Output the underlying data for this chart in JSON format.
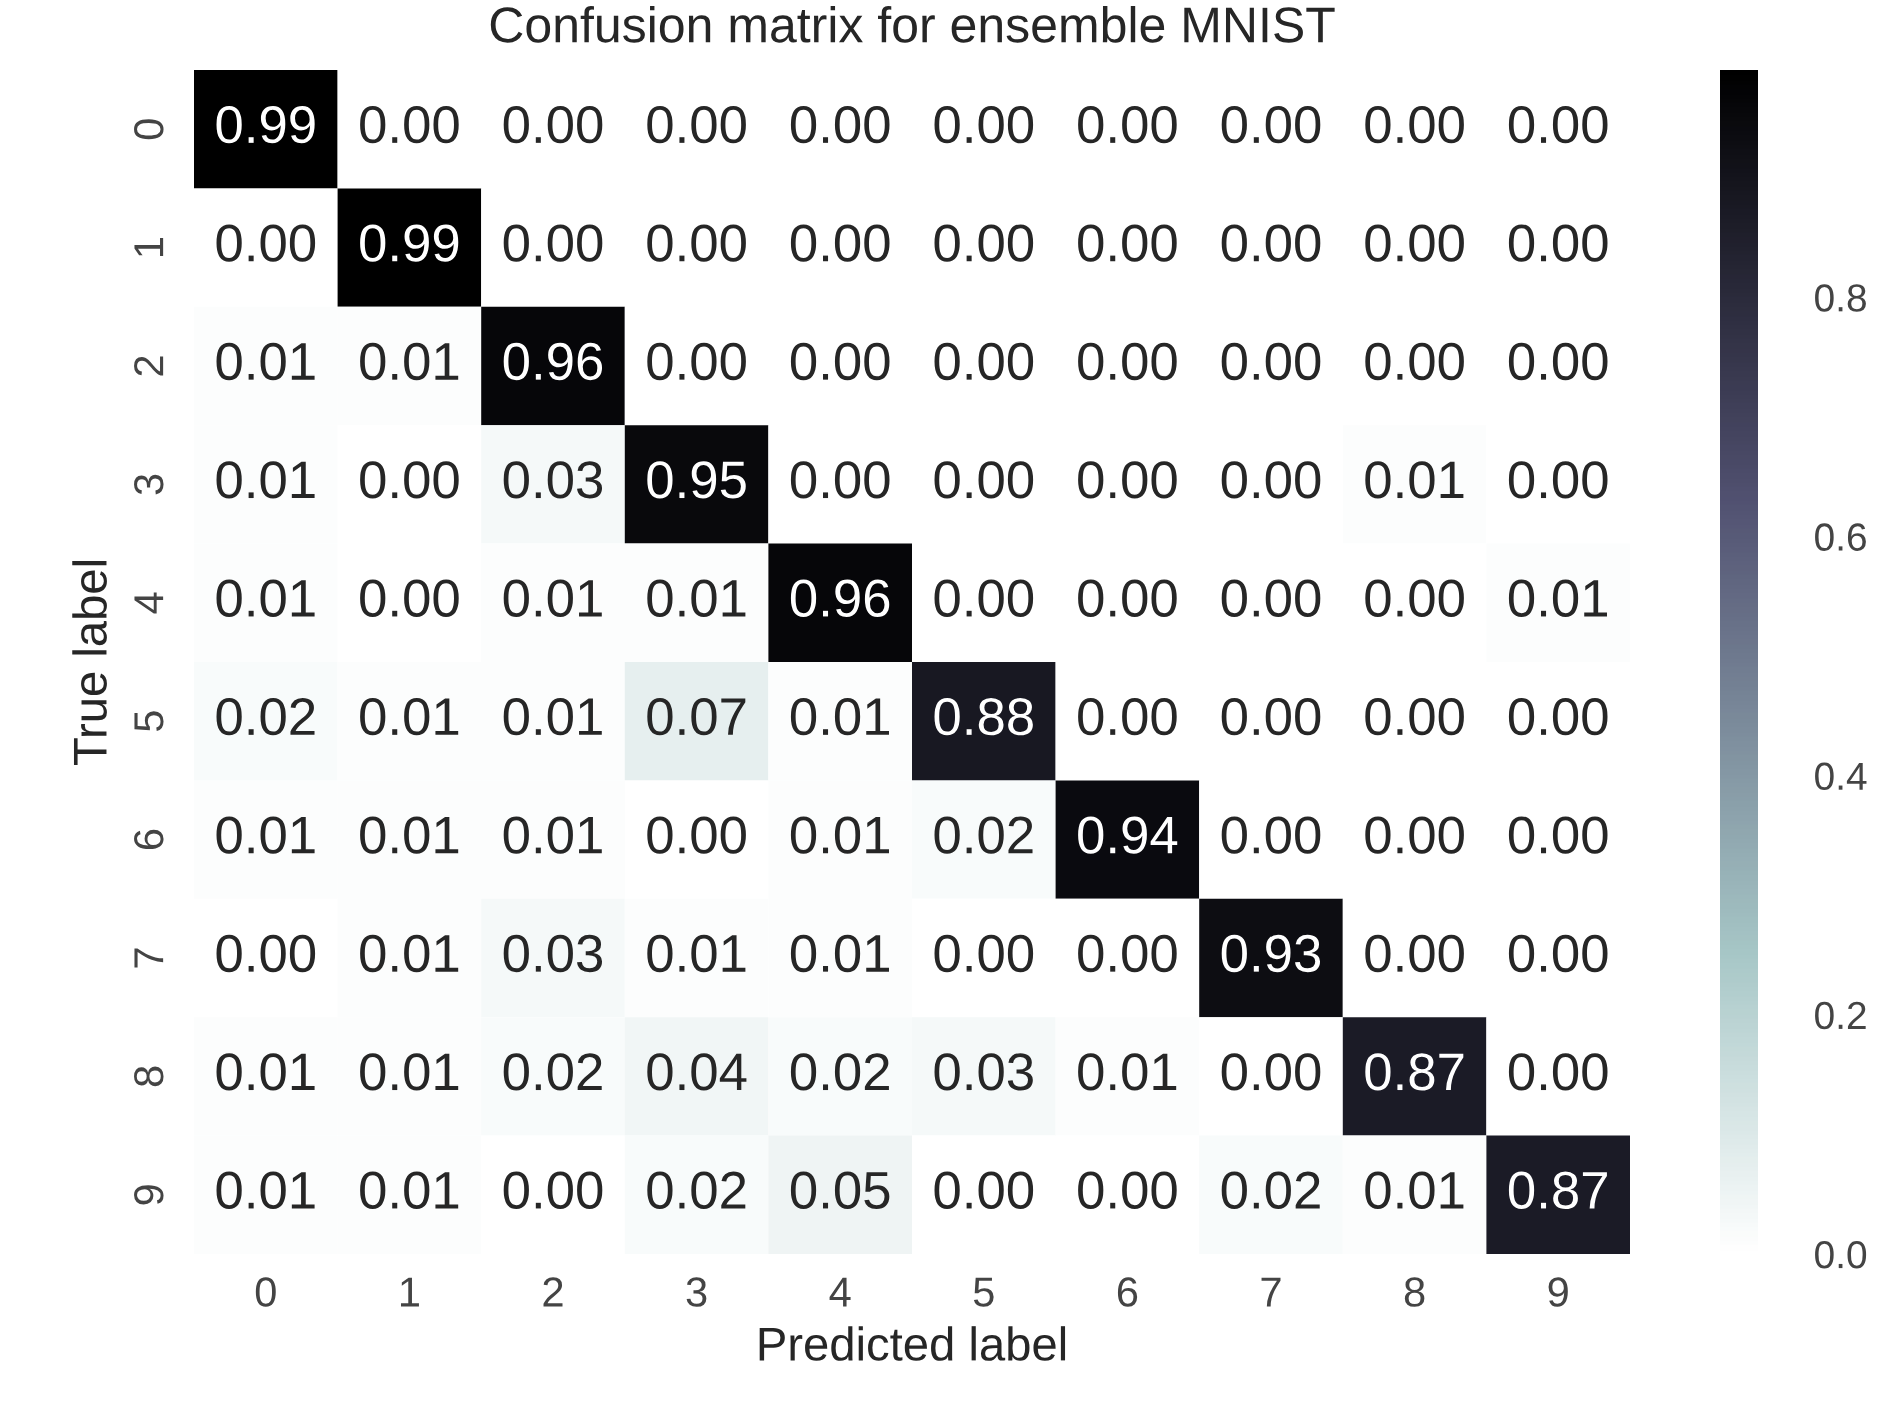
{
  "chart_data": {
    "type": "heatmap",
    "title": "Confusion matrix for ensemble MNIST",
    "xlabel": "Predicted label",
    "ylabel": "True label",
    "categories": [
      "0",
      "1",
      "2",
      "3",
      "4",
      "5",
      "6",
      "7",
      "8",
      "9"
    ],
    "y_categories": [
      "0",
      "1",
      "2",
      "3",
      "4",
      "5",
      "6",
      "7",
      "8",
      "9"
    ],
    "cells": [
      [
        0.99,
        0.0,
        0.0,
        0.0,
        0.0,
        0.0,
        0.0,
        0.0,
        0.0,
        0.0
      ],
      [
        0.0,
        0.99,
        0.0,
        0.0,
        0.0,
        0.0,
        0.0,
        0.0,
        0.0,
        0.0
      ],
      [
        0.01,
        0.01,
        0.96,
        0.0,
        0.0,
        0.0,
        0.0,
        0.0,
        0.0,
        0.0
      ],
      [
        0.01,
        0.0,
        0.03,
        0.95,
        0.0,
        0.0,
        0.0,
        0.0,
        0.01,
        0.0
      ],
      [
        0.01,
        0.0,
        0.01,
        0.01,
        0.96,
        0.0,
        0.0,
        0.0,
        0.0,
        0.01
      ],
      [
        0.02,
        0.01,
        0.01,
        0.07,
        0.01,
        0.88,
        0.0,
        0.0,
        0.0,
        0.0
      ],
      [
        0.01,
        0.01,
        0.01,
        0.0,
        0.01,
        0.02,
        0.94,
        0.0,
        0.0,
        0.0
      ],
      [
        0.0,
        0.01,
        0.03,
        0.01,
        0.01,
        0.0,
        0.0,
        0.93,
        0.0,
        0.0
      ],
      [
        0.01,
        0.01,
        0.02,
        0.04,
        0.02,
        0.03,
        0.01,
        0.0,
        0.87,
        0.0
      ],
      [
        0.01,
        0.01,
        0.0,
        0.02,
        0.05,
        0.0,
        0.0,
        0.02,
        0.01,
        0.87
      ]
    ],
    "clim": [
      0,
      0.99
    ],
    "cticks": [
      {
        "value": 0,
        "label": "0.0"
      },
      {
        "value": 0.2,
        "label": "0.2"
      },
      {
        "value": 0.4,
        "label": "0.4"
      },
      {
        "value": 0.6,
        "label": "0.6"
      },
      {
        "value": 0.8,
        "label": "0.8"
      }
    ],
    "cell_labels": [
      [
        "0.99",
        "0.00",
        "0.00",
        "0.00",
        "0.00",
        "0.00",
        "0.00",
        "0.00",
        "0.00",
        "0.00"
      ],
      [
        "0.00",
        "0.99",
        "0.00",
        "0.00",
        "0.00",
        "0.00",
        "0.00",
        "0.00",
        "0.00",
        "0.00"
      ],
      [
        "0.01",
        "0.01",
        "0.96",
        "0.00",
        "0.00",
        "0.00",
        "0.00",
        "0.00",
        "0.00",
        "0.00"
      ],
      [
        "0.01",
        "0.00",
        "0.03",
        "0.95",
        "0.00",
        "0.00",
        "0.00",
        "0.00",
        "0.01",
        "0.00"
      ],
      [
        "0.01",
        "0.00",
        "0.01",
        "0.01",
        "0.96",
        "0.00",
        "0.00",
        "0.00",
        "0.00",
        "0.01"
      ],
      [
        "0.02",
        "0.01",
        "0.01",
        "0.07",
        "0.01",
        "0.88",
        "0.00",
        "0.00",
        "0.00",
        "0.00"
      ],
      [
        "0.01",
        "0.01",
        "0.01",
        "0.00",
        "0.01",
        "0.02",
        "0.94",
        "0.00",
        "0.00",
        "0.00"
      ],
      [
        "0.00",
        "0.01",
        "0.03",
        "0.01",
        "0.01",
        "0.00",
        "0.00",
        "0.93",
        "0.00",
        "0.00"
      ],
      [
        "0.01",
        "0.01",
        "0.02",
        "0.04",
        "0.02",
        "0.03",
        "0.01",
        "0.00",
        "0.87",
        "0.00"
      ],
      [
        "0.01",
        "0.01",
        "0.00",
        "0.02",
        "0.05",
        "0.00",
        "0.00",
        "0.02",
        "0.01",
        "0.87"
      ]
    ]
  }
}
